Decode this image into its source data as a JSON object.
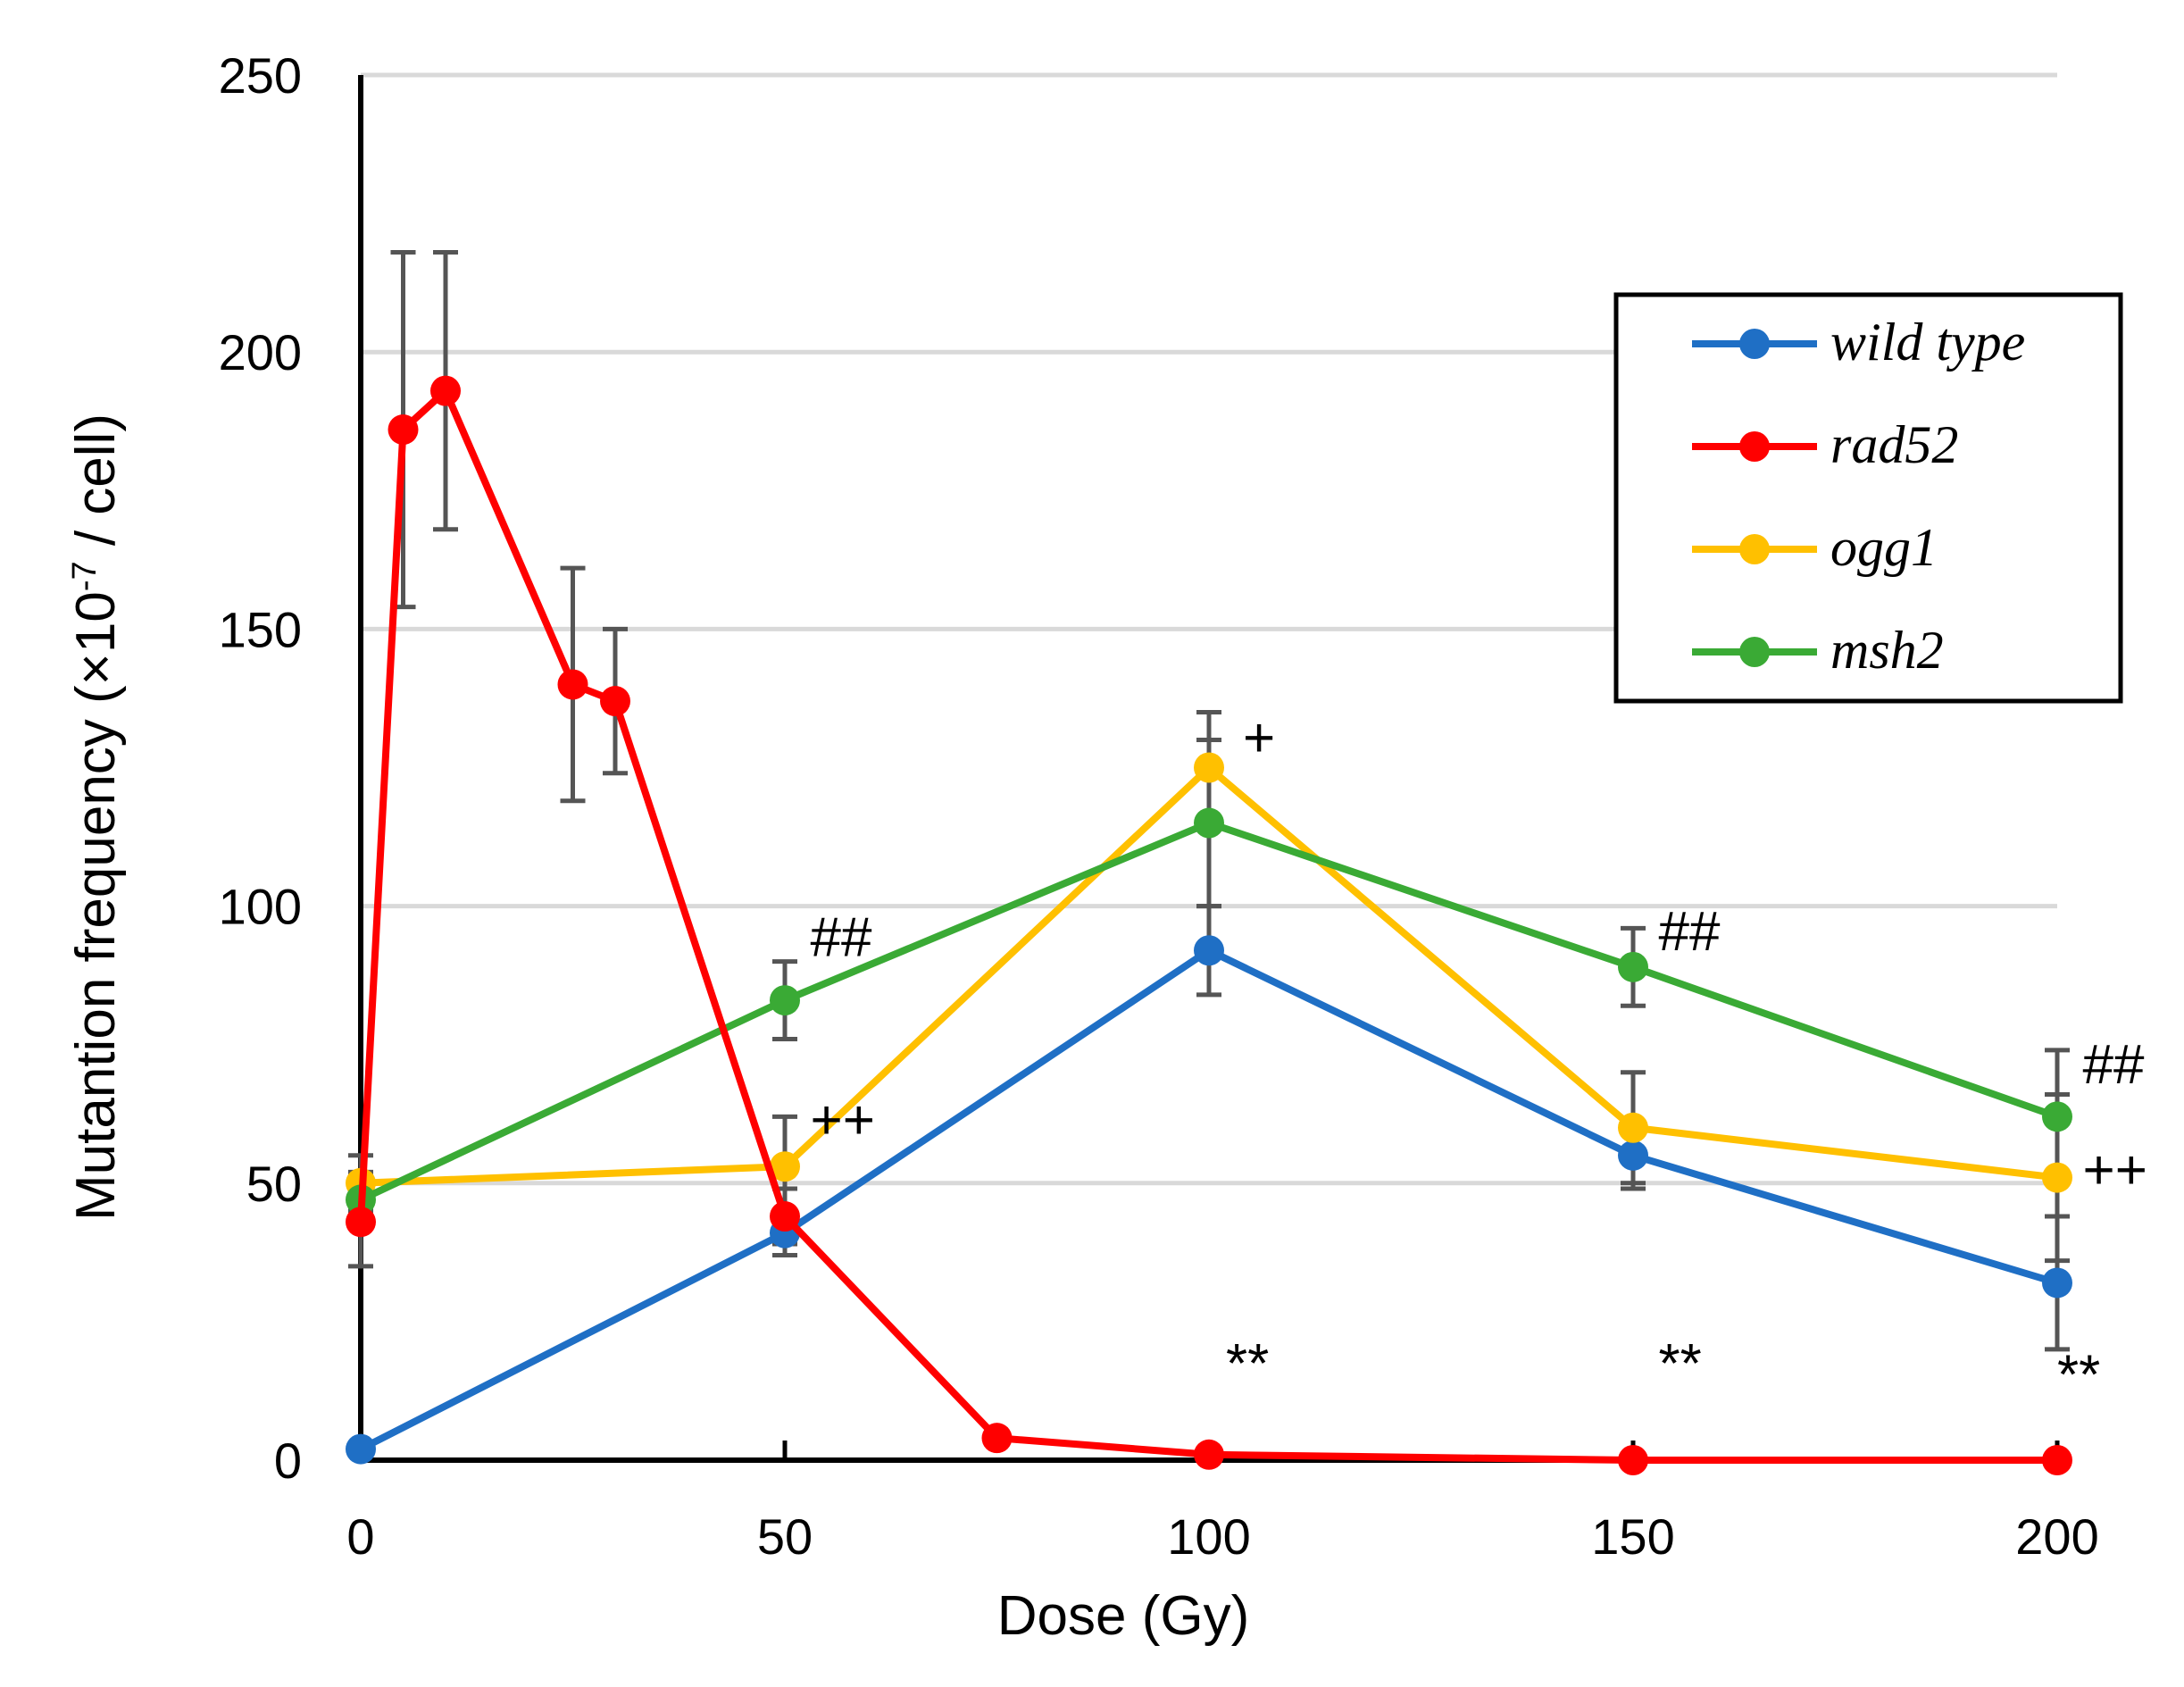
{
  "chart_data": {
    "type": "line",
    "title": "",
    "xlabel": "Dose (Gy)",
    "ylabel_main": "Mutantion frequency (×10",
    "ylabel_exp": "-7",
    "ylabel_tail": " / cell)",
    "xlim": [
      0,
      200
    ],
    "ylim": [
      0,
      250
    ],
    "x_ticks": [
      0,
      50,
      100,
      150,
      200
    ],
    "y_ticks": [
      0,
      50,
      100,
      150,
      200,
      250
    ],
    "grid": "horizontal",
    "legend_position": "top-right",
    "series": [
      {
        "name": "wild type",
        "color": "#1f6fc5",
        "x": [
          0,
          50,
          100,
          150,
          200
        ],
        "values": [
          2,
          41,
          92,
          55,
          32
        ],
        "error": [
          0,
          4,
          8,
          6,
          12
        ]
      },
      {
        "name": "rad52",
        "color": "#ff0000",
        "x": [
          0,
          5,
          10,
          25,
          30,
          50,
          75,
          100,
          150,
          200
        ],
        "values": [
          43,
          186,
          193,
          140,
          137,
          44,
          4,
          1,
          0,
          0
        ],
        "error": [
          8,
          32,
          25,
          21,
          13,
          5,
          1,
          0.5,
          0.5,
          0.5
        ]
      },
      {
        "name": "ogg1",
        "color": "#ffc000",
        "x": [
          0,
          50,
          100,
          150,
          200
        ],
        "values": [
          50,
          53,
          125,
          60,
          51
        ],
        "error": [
          5,
          9,
          10,
          10,
          15
        ]
      },
      {
        "name": "msh2",
        "color": "#3aaa35",
        "x": [
          0,
          50,
          100,
          150,
          200
        ],
        "values": [
          47,
          83,
          115,
          89,
          62
        ],
        "error": [
          5,
          7,
          15,
          7,
          12
        ]
      }
    ],
    "annotations": [
      {
        "text": "##",
        "x": 53,
        "y": 91
      },
      {
        "text": "++",
        "x": 53,
        "y": 58
      },
      {
        "text": "+",
        "x": 104,
        "y": 127
      },
      {
        "text": "##",
        "x": 153,
        "y": 92
      },
      {
        "text": "##",
        "x": 203,
        "y": 68
      },
      {
        "text": "++",
        "x": 203,
        "y": 49
      },
      {
        "text": "**",
        "x": 102,
        "y": 14
      },
      {
        "text": "**",
        "x": 153,
        "y": 14
      },
      {
        "text": "**",
        "x": 200,
        "y": 12
      }
    ]
  }
}
